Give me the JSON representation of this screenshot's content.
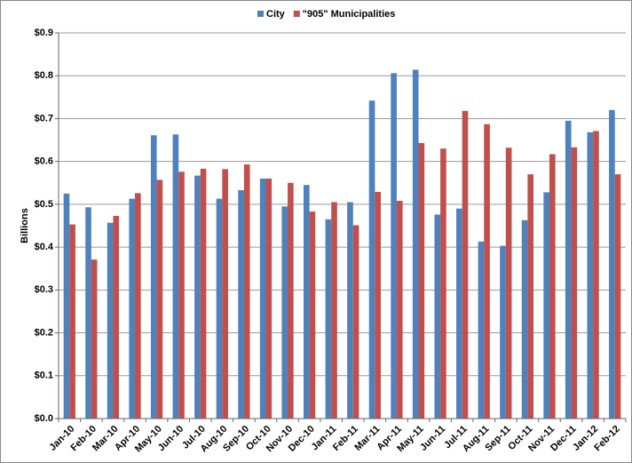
{
  "chart_data": {
    "type": "bar",
    "y_label": "Billions",
    "categories": [
      "Jan-10",
      "Feb-10",
      "Mar-10",
      "Apr-10",
      "May-10",
      "Jun-10",
      "Jul-10",
      "Aug-10",
      "Sep-10",
      "Oct-10",
      "Nov-10",
      "Dec-10",
      "Jan-11",
      "Feb-11",
      "Mar-11",
      "Apr-11",
      "May-11",
      "Jun-11",
      "Jul-11",
      "Aug-11",
      "Sep-11",
      "Oct-11",
      "Nov-11",
      "Dec-11",
      "Jan-12",
      "Feb-12"
    ],
    "series": [
      {
        "name": "City",
        "color": "#4f81bd",
        "values": [
          0.525,
          0.493,
          0.457,
          0.513,
          0.661,
          0.663,
          0.567,
          0.513,
          0.533,
          0.56,
          0.495,
          0.545,
          0.465,
          0.505,
          0.742,
          0.806,
          0.814,
          0.476,
          0.49,
          0.413,
          0.403,
          0.463,
          0.528,
          0.695,
          0.668,
          0.72
        ]
      },
      {
        "name": "\"905\" Municipalities",
        "color": "#c0504d",
        "values": [
          0.453,
          0.371,
          0.473,
          0.526,
          0.557,
          0.576,
          0.583,
          0.582,
          0.593,
          0.56,
          0.55,
          0.483,
          0.505,
          0.451,
          0.529,
          0.508,
          0.643,
          0.63,
          0.718,
          0.687,
          0.632,
          0.57,
          0.617,
          0.633,
          0.671,
          0.57
        ]
      }
    ],
    "ylim": [
      0,
      0.9
    ],
    "yticks": [
      {
        "value": 0,
        "label": "$0.0"
      },
      {
        "value": 0.1,
        "label": "$0.1"
      },
      {
        "value": 0.2,
        "label": "$0.2"
      },
      {
        "value": 0.3,
        "label": "$0.3"
      },
      {
        "value": 0.4,
        "label": "$0.4"
      },
      {
        "value": 0.5,
        "label": "$0.5"
      },
      {
        "value": 0.6,
        "label": "$0.6"
      },
      {
        "value": 0.7,
        "label": "$0.7"
      },
      {
        "value": 0.8,
        "label": "$0.8"
      },
      {
        "value": 0.9,
        "label": "$0.9"
      }
    ],
    "grid": true,
    "legend": "top"
  }
}
